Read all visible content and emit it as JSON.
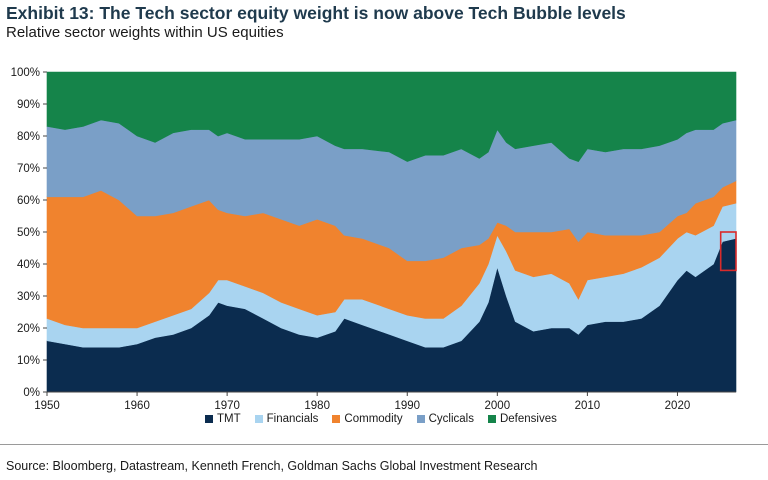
{
  "header": {
    "title": "Exhibit 13: The Tech sector equity weight is now above Tech Bubble levels",
    "subtitle": "Relative sector weights within US equities"
  },
  "footer": {
    "source": "Source: Bloomberg, Datastream, Kenneth French, Goldman Sachs Global Investment Research"
  },
  "legend": [
    {
      "label": "TMT",
      "color": "#0b2c4f"
    },
    {
      "label": "Financials",
      "color": "#a9d4f0"
    },
    {
      "label": "Commodity",
      "color": "#f0832e"
    },
    {
      "label": "Cyclicals",
      "color": "#7a9fc7"
    },
    {
      "label": "Defensives",
      "color": "#15844a"
    }
  ],
  "chart_data": {
    "type": "area",
    "stacked": true,
    "title": "Relative sector weights within US equities",
    "xlim": [
      1950,
      2026.5
    ],
    "ylim": [
      0,
      100
    ],
    "xticks": [
      1950,
      1960,
      1970,
      1980,
      1990,
      2000,
      2010,
      2020
    ],
    "yticks": [
      "0%",
      "10%",
      "20%",
      "30%",
      "40%",
      "50%",
      "60%",
      "70%",
      "80%",
      "90%",
      "100%"
    ],
    "grid": false,
    "legend_position": "bottom",
    "x": [
      1950,
      1952,
      1954,
      1956,
      1958,
      1960,
      1962,
      1964,
      1966,
      1968,
      1969,
      1970,
      1972,
      1974,
      1976,
      1978,
      1980,
      1982,
      1983,
      1985,
      1988,
      1990,
      1992,
      1994,
      1996,
      1998,
      1999,
      2000,
      2001,
      2002,
      2004,
      2006,
      2008,
      2009,
      2010,
      2012,
      2014,
      2016,
      2018,
      2020,
      2021,
      2022,
      2024,
      2025,
      2026.5
    ],
    "series": [
      {
        "name": "TMT",
        "color": "#0b2c4f",
        "values": [
          16,
          15,
          14,
          14,
          14,
          15,
          17,
          18,
          20,
          24,
          28,
          27,
          26,
          23,
          20,
          18,
          17,
          19,
          23,
          21,
          18,
          16,
          14,
          14,
          16,
          22,
          28,
          39,
          30,
          22,
          19,
          20,
          20,
          18,
          21,
          22,
          22,
          23,
          27,
          35,
          38,
          36,
          40,
          47,
          48
        ]
      },
      {
        "name": "Financials",
        "color": "#a9d4f0",
        "values": [
          7,
          6,
          6,
          6,
          6,
          5,
          5,
          6,
          6,
          7,
          7,
          8,
          7,
          8,
          8,
          8,
          7,
          6,
          6,
          8,
          8,
          8,
          9,
          9,
          11,
          12,
          12,
          10,
          14,
          16,
          17,
          17,
          14,
          11,
          14,
          14,
          15,
          16,
          15,
          13,
          12,
          13,
          12,
          11,
          11
        ]
      },
      {
        "name": "Commodity",
        "color": "#f0832e",
        "values": [
          38,
          40,
          41,
          43,
          40,
          35,
          33,
          32,
          32,
          29,
          22,
          21,
          22,
          25,
          26,
          26,
          30,
          27,
          20,
          19,
          19,
          17,
          18,
          19,
          18,
          12,
          8,
          4,
          8,
          12,
          14,
          13,
          17,
          18,
          15,
          13,
          12,
          10,
          8,
          7,
          6,
          10,
          9,
          6,
          7
        ]
      },
      {
        "name": "Cyclicals",
        "color": "#7a9fc7",
        "values": [
          22,
          21,
          22,
          22,
          24,
          25,
          23,
          25,
          24,
          22,
          23,
          25,
          24,
          23,
          25,
          27,
          26,
          25,
          27,
          28,
          30,
          31,
          33,
          32,
          31,
          27,
          27,
          29,
          26,
          26,
          27,
          28,
          22,
          25,
          26,
          26,
          27,
          27,
          27,
          24,
          25,
          23,
          21,
          20,
          19
        ]
      },
      {
        "name": "Defensives",
        "color": "#15844a",
        "values": [
          17,
          18,
          17,
          15,
          16,
          20,
          22,
          19,
          18,
          18,
          20,
          19,
          21,
          21,
          21,
          21,
          20,
          23,
          24,
          24,
          25,
          28,
          26,
          26,
          24,
          27,
          25,
          18,
          22,
          24,
          23,
          22,
          27,
          28,
          24,
          25,
          24,
          24,
          23,
          21,
          19,
          18,
          18,
          16,
          15
        ]
      }
    ],
    "annotations": [
      {
        "type": "highlight-box",
        "x_range": [
          2024.8,
          2026.5
        ],
        "y_range": [
          38,
          50
        ],
        "color": "#d92b2b"
      }
    ]
  }
}
